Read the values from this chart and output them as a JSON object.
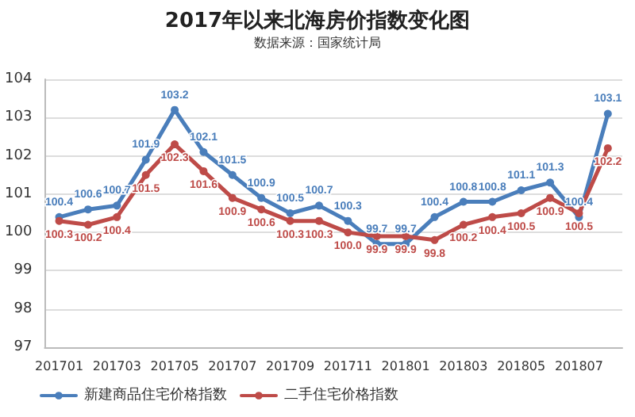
{
  "chart_data": {
    "type": "line",
    "title": "2017年以来北海房价指数变化图",
    "subtitle": "数据来源：国家统计局",
    "categories": [
      "201701",
      null,
      "201703",
      null,
      "201705",
      null,
      "201707",
      null,
      "201709",
      null,
      "201711",
      null,
      "201801",
      null,
      "201803",
      null,
      "201805",
      null,
      "201807",
      null
    ],
    "series": [
      {
        "name": "新建商品住宅价格指数",
        "color": "#4a7ebb",
        "values": [
          100.4,
          100.6,
          100.7,
          101.9,
          103.2,
          102.1,
          101.5,
          100.9,
          100.5,
          100.7,
          100.3,
          99.7,
          99.7,
          100.4,
          100.8,
          100.8,
          101.1,
          101.3,
          100.4,
          103.1
        ],
        "value_labels": [
          "100.4",
          "100.6",
          "100.7",
          "101.9",
          "103.2",
          "102.1",
          "101.5",
          "100.9",
          "100.5",
          "100.7",
          "100.3",
          "99.7",
          "99.7",
          "100.4",
          "100.8",
          "100.8",
          "101.1",
          "101.3",
          "100.4",
          "103.1"
        ]
      },
      {
        "name": "二手住宅价格指数",
        "color": "#be4b48",
        "values": [
          100.3,
          100.2,
          100.4,
          101.5,
          102.3,
          101.6,
          100.9,
          100.6,
          100.3,
          100.3,
          100.0,
          99.9,
          99.9,
          99.8,
          100.2,
          100.4,
          100.5,
          100.9,
          100.5,
          102.2
        ],
        "value_labels": [
          "100.3",
          "100.2",
          "100.4",
          "101.5",
          "102.3",
          "101.6",
          "100.9",
          "100.6",
          "100.3",
          "100.3",
          "100.0",
          "99.9",
          "99.9",
          "99.8",
          "100.2",
          "100.4",
          "100.5",
          "100.9",
          "100.5",
          "102.2"
        ]
      }
    ],
    "ylim": [
      97,
      104
    ],
    "yticks": [
      97,
      98,
      99,
      100,
      101,
      102,
      103,
      104
    ],
    "grid": "y",
    "legend": "bottom left",
    "marker": "circle",
    "line_style": "solid"
  }
}
